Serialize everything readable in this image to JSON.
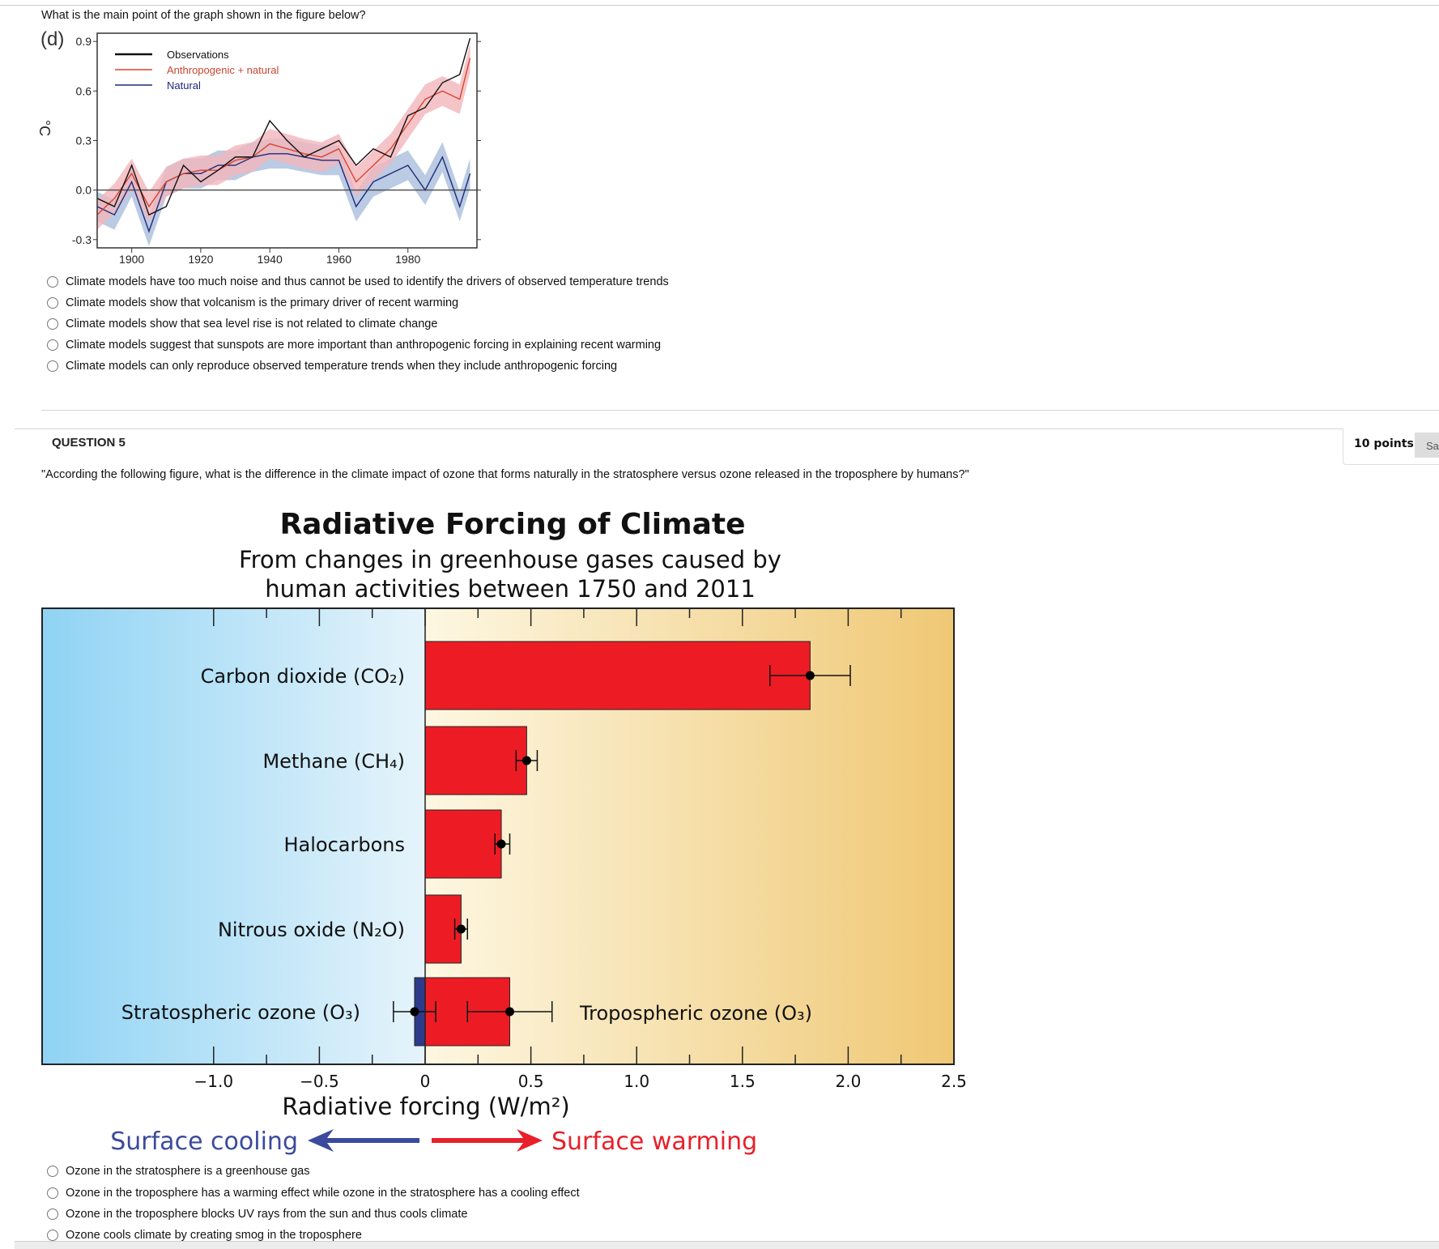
{
  "q4": {
    "prompt": "What is the main point of the graph shown in the figure below?",
    "options": [
      "Climate models have too much noise and thus cannot be used to identify the drivers of observed temperature trends",
      "Climate models show that volcanism is the primary driver of recent warming",
      "Climate models show that sea level rise is not related to climate change",
      "Climate models suggest that sunspots are more important than anthropogenic forcing in explaining recent warming",
      "Climate models can only reproduce observed temperature trends when they include anthropogenic forcing"
    ]
  },
  "q5": {
    "label": "QUESTION 5",
    "points": "10 points",
    "save_label": "Sa",
    "prompt": "\"According the following figure, what is the difference in the climate impact of ozone that forms naturally in the stratosphere versus ozone released in the troposphere by humans?\"",
    "options": [
      "Ozone in the stratosphere is a greenhouse gas",
      "Ozone in the troposphere has a warming effect while ozone in the stratosphere has a cooling effect",
      "Ozone in the troposphere blocks UV rays from the sun and thus cools climate",
      "Ozone cools climate by creating smog in the troposphere"
    ],
    "cooling_label": "Surface cooling",
    "warming_label": "Surface warming",
    "colors": {
      "cooling": "#3b4a9c",
      "warming": "#e8202a"
    }
  },
  "chart_data": [
    {
      "type": "line",
      "panel_label": "(d)",
      "ylabel": "°C",
      "xlim": [
        1890,
        2000
      ],
      "ylim": [
        -0.35,
        0.95
      ],
      "xticks": [
        1900,
        1920,
        1940,
        1960,
        1980
      ],
      "yticks": [
        0.9,
        0.6,
        0.3,
        0.0,
        -0.3
      ],
      "ytick_labels": [
        "0.9",
        "0.6",
        "0.3",
        "0.0",
        "-0.3"
      ],
      "legend_position": "top-left",
      "x": [
        1890,
        1895,
        1900,
        1905,
        1910,
        1915,
        1920,
        1925,
        1930,
        1935,
        1940,
        1945,
        1950,
        1955,
        1960,
        1965,
        1970,
        1975,
        1980,
        1985,
        1990,
        1995,
        1998
      ],
      "series": [
        {
          "name": "Observations",
          "color": "#111111",
          "values": [
            -0.05,
            -0.1,
            0.15,
            -0.15,
            -0.1,
            0.15,
            0.05,
            0.12,
            0.2,
            0.2,
            0.42,
            0.3,
            0.2,
            0.25,
            0.3,
            0.15,
            0.25,
            0.2,
            0.45,
            0.5,
            0.65,
            0.7,
            0.92
          ]
        },
        {
          "name": "Anthropogenic + natural",
          "color": "#d9452f",
          "band": "#f2b5bb",
          "values": [
            -0.15,
            -0.05,
            0.1,
            -0.1,
            0.05,
            0.1,
            0.12,
            0.12,
            0.18,
            0.2,
            0.28,
            0.25,
            0.22,
            0.2,
            0.25,
            0.05,
            0.15,
            0.25,
            0.4,
            0.55,
            0.6,
            0.55,
            0.8
          ]
        },
        {
          "name": "Natural",
          "color": "#1f2a7a",
          "band": "#a9bedc",
          "values": [
            -0.1,
            -0.15,
            0.05,
            -0.25,
            0.05,
            0.1,
            0.1,
            0.15,
            0.15,
            0.2,
            0.22,
            0.22,
            0.2,
            0.18,
            0.18,
            -0.1,
            0.05,
            0.1,
            0.15,
            0.0,
            0.2,
            -0.1,
            0.1
          ]
        }
      ]
    },
    {
      "type": "bar",
      "orientation": "horizontal",
      "title": "Radiative Forcing of Climate",
      "subtitle": [
        "From changes in greenhouse gases caused by",
        "human activities between 1750 and 2011"
      ],
      "xlabel": "Radiative forcing  (W/m²)",
      "xlim": [
        -1.8,
        2.5
      ],
      "xticks": [
        -1.0,
        -0.5,
        0,
        0.5,
        1.0,
        1.5,
        2.0,
        2.5
      ],
      "xtick_labels": [
        "−1.0",
        "−0.5",
        "0",
        "0.5",
        "1.0",
        "1.5",
        "2.0",
        "2.5"
      ],
      "categories": [
        "Carbon dioxide (CO₂)",
        "Methane (CH₄)",
        "Halocarbons",
        "Nitrous oxide (N₂O)",
        "Stratospheric ozone (O₃)",
        "Tropospheric ozone (O₃)"
      ],
      "values": [
        1.82,
        0.48,
        0.36,
        0.17,
        -0.05,
        0.4
      ],
      "error_low": [
        1.63,
        0.43,
        0.33,
        0.14,
        -0.15,
        0.2
      ],
      "error_high": [
        2.01,
        0.53,
        0.4,
        0.2,
        0.05,
        0.6
      ],
      "bar_colors": [
        "#ed1c24",
        "#ed1c24",
        "#ed1c24",
        "#ed1c24",
        "#2e3a8c",
        "#ed1c24"
      ]
    }
  ]
}
